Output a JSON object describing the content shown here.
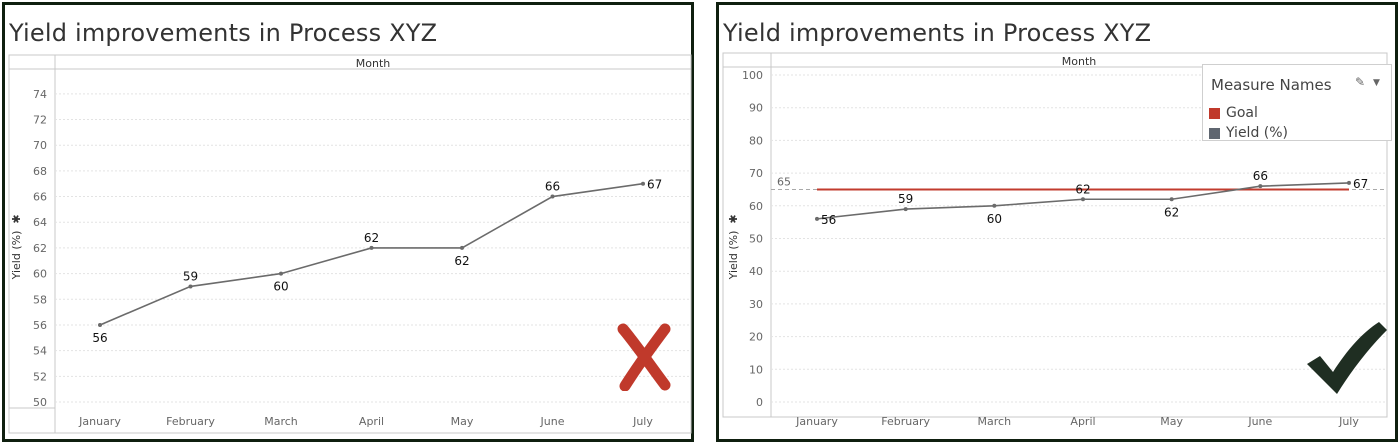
{
  "colors": {
    "line": "#6b6b6b",
    "goal": "#c23b2e",
    "goal_swatch": "#c0392b",
    "yield_swatch": "#5f6670",
    "cross": "#c0392b",
    "check": "#1f2e22"
  },
  "icons": {
    "left_mark": "cross-mark-icon",
    "right_mark": "check-mark-icon",
    "edit": "pencil-icon",
    "dropdown": "chevron-down-icon"
  },
  "left": {
    "title": "Yield improvements in Process XYZ",
    "header": "Month",
    "ylabel": "Yield (%)"
  },
  "right": {
    "title": "Yield improvements in Process XYZ",
    "header": "Month",
    "ylabel": "Yield (%)",
    "legend_title": "Measure Names",
    "legend_items": [
      "Goal",
      "Yield (%)"
    ]
  },
  "chart_data": [
    {
      "type": "line",
      "title": "Yield improvements in Process XYZ",
      "xlabel": "Month",
      "ylabel": "Yield (%)",
      "categories": [
        "January",
        "February",
        "March",
        "April",
        "May",
        "June",
        "July"
      ],
      "series": [
        {
          "name": "Yield (%)",
          "values": [
            56,
            59,
            60,
            62,
            62,
            66,
            67
          ]
        }
      ],
      "ylim": [
        50,
        75
      ],
      "yticks": [
        50,
        52,
        54,
        56,
        58,
        60,
        62,
        64,
        66,
        68,
        70,
        72,
        74
      ],
      "data_label_positions": [
        "below",
        "above",
        "below",
        "above",
        "below",
        "above",
        "right"
      ],
      "grid": true,
      "annotation": "cross mark"
    },
    {
      "type": "line",
      "title": "Yield improvements in Process XYZ",
      "xlabel": "Month",
      "ylabel": "Yield (%)",
      "categories": [
        "January",
        "February",
        "March",
        "April",
        "May",
        "June",
        "July"
      ],
      "series": [
        {
          "name": "Yield (%)",
          "values": [
            56,
            59,
            60,
            62,
            62,
            66,
            67
          ]
        },
        {
          "name": "Goal",
          "values": [
            65,
            65,
            65,
            65,
            65,
            65,
            65
          ]
        }
      ],
      "reference_line": {
        "value": 65,
        "label": "65"
      },
      "ylim": [
        0,
        100
      ],
      "yticks": [
        0,
        10,
        20,
        30,
        40,
        50,
        60,
        70,
        80,
        90,
        100
      ],
      "data_label_positions": [
        "right",
        "above",
        "below",
        "above",
        "below",
        "above",
        "right"
      ],
      "grid": true,
      "legend": {
        "title": "Measure Names",
        "entries": [
          "Goal",
          "Yield (%)"
        ],
        "position": "top-right"
      },
      "annotation": "check mark"
    }
  ]
}
